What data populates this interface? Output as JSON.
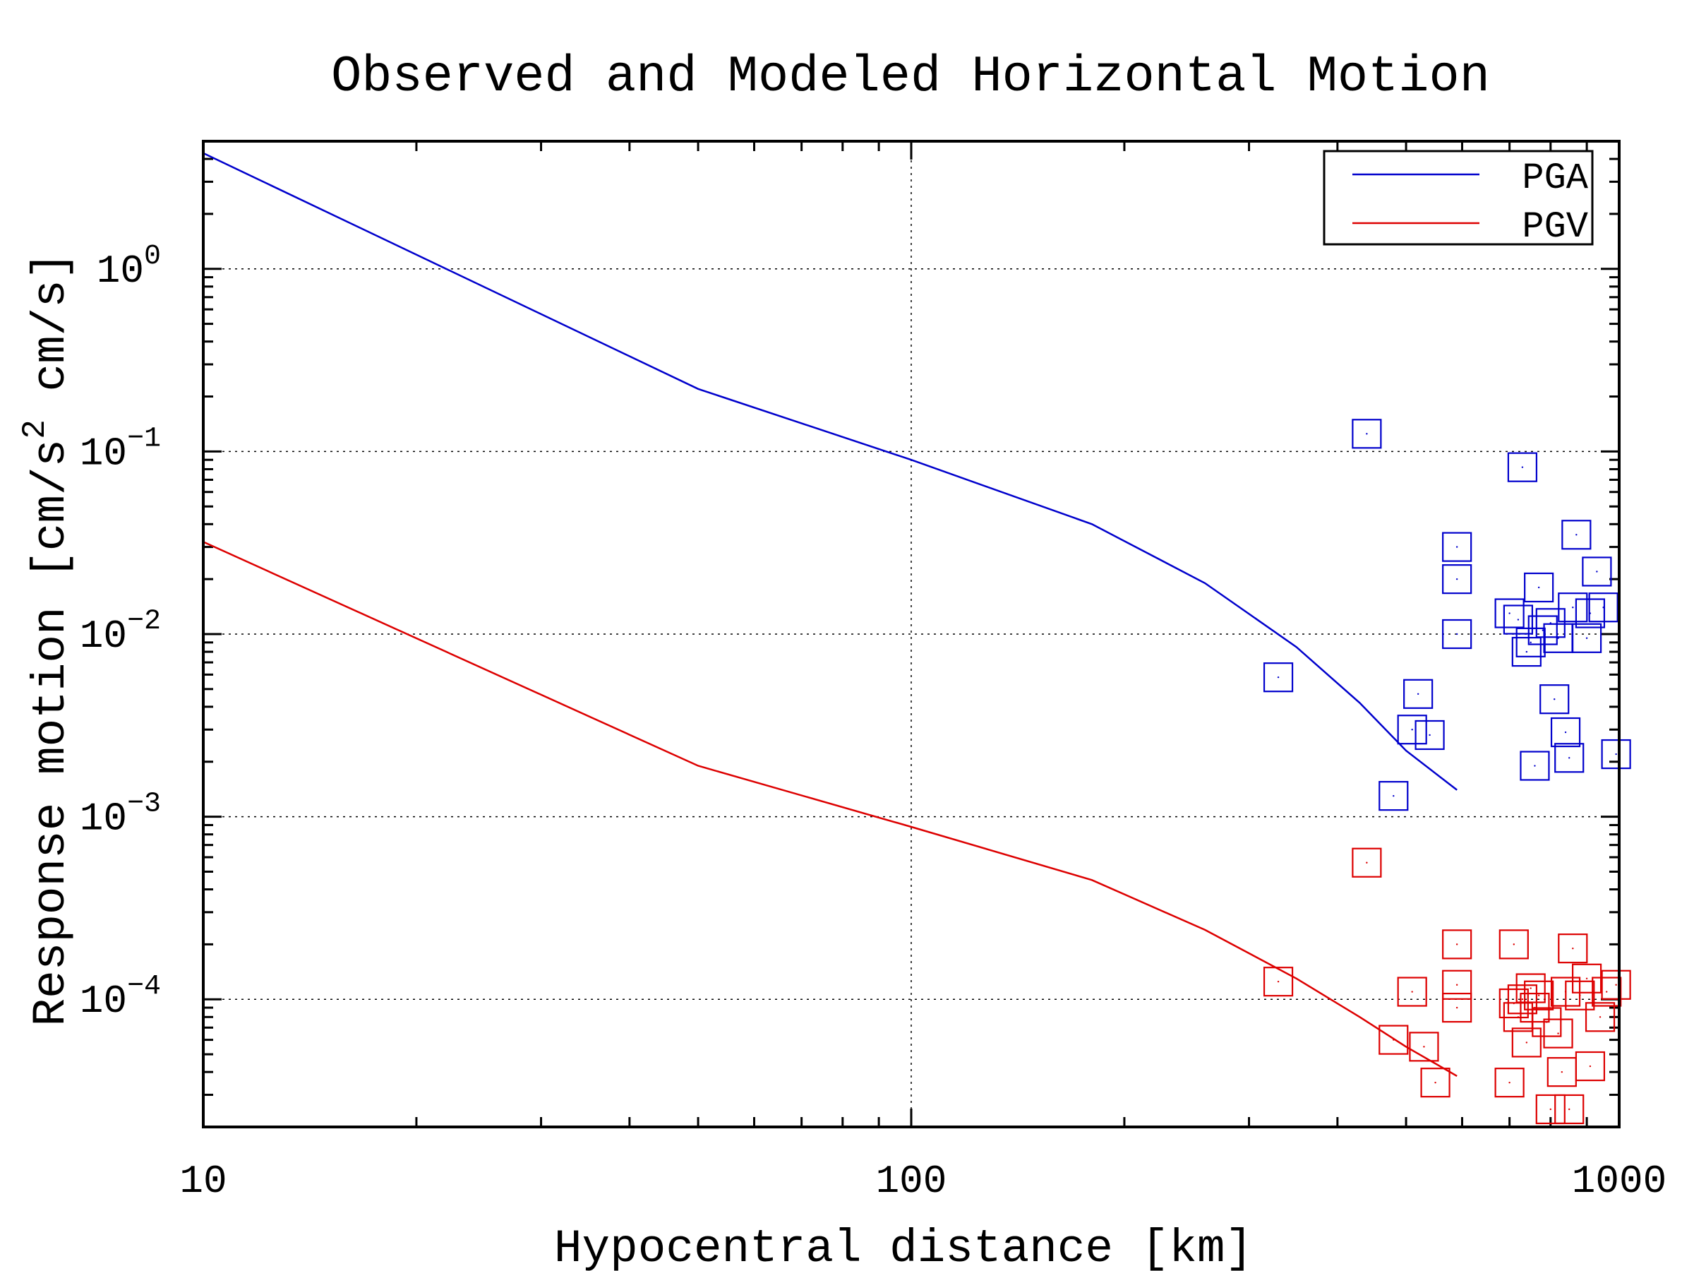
{
  "chart_data": {
    "type": "line",
    "title": "Observed and Modeled Horizontal Motion",
    "xlabel": "Hypocentral distance [km]",
    "ylabel": "Response motion [cm/s² cm/s]",
    "xscale": "log",
    "yscale": "log",
    "xlim": [
      10,
      1000
    ],
    "ylim": [
      2e-05,
      5
    ],
    "xticks": [
      "10",
      "100",
      "1000"
    ],
    "yticks": [
      {
        "base": "10",
        "exp": "0",
        "value": 1
      },
      {
        "base": "10",
        "exp": "−1",
        "value": 0.1
      },
      {
        "base": "10",
        "exp": "−2",
        "value": 0.01
      },
      {
        "base": "10",
        "exp": "−3",
        "value": 0.001
      },
      {
        "base": "10",
        "exp": "−4",
        "value": 0.0001
      }
    ],
    "grid": true,
    "legend_position": "top-right",
    "series": [
      {
        "name": "PGA",
        "color": "#0000cc",
        "x": [
          10,
          50,
          100,
          180,
          260,
          350,
          430,
          500,
          590
        ],
        "y": [
          4.3,
          0.22,
          0.09,
          0.04,
          0.019,
          0.0085,
          0.0042,
          0.0023,
          0.0014
        ]
      },
      {
        "name": "PGV",
        "color": "#dd0000",
        "x": [
          10,
          50,
          100,
          180,
          260,
          350,
          430,
          500,
          590
        ],
        "y": [
          0.032,
          0.0019,
          0.00088,
          0.00045,
          0.00024,
          0.00013,
          8e-05,
          5.5e-05,
          3.8e-05
        ]
      }
    ],
    "observed": [
      {
        "series": "PGA",
        "color": "#0000cc",
        "marker": "square",
        "points": [
          [
            330,
            0.0058
          ],
          [
            440,
            0.125
          ],
          [
            480,
            0.0013
          ],
          [
            510,
            0.003
          ],
          [
            520,
            0.0047
          ],
          [
            540,
            0.0028
          ],
          [
            590,
            0.03
          ],
          [
            590,
            0.02
          ],
          [
            590,
            0.01
          ],
          [
            700,
            0.013
          ],
          [
            720,
            0.012
          ],
          [
            730,
            0.082
          ],
          [
            740,
            0.008
          ],
          [
            750,
            0.009
          ],
          [
            760,
            0.0019
          ],
          [
            770,
            0.018
          ],
          [
            780,
            0.0105
          ],
          [
            800,
            0.0115
          ],
          [
            810,
            0.0044
          ],
          [
            820,
            0.0095
          ],
          [
            840,
            0.0029
          ],
          [
            850,
            0.0021
          ],
          [
            860,
            0.014
          ],
          [
            870,
            0.035
          ],
          [
            900,
            0.0095
          ],
          [
            910,
            0.013
          ],
          [
            930,
            0.022
          ],
          [
            950,
            0.014
          ],
          [
            990,
            0.0022
          ]
        ]
      },
      {
        "series": "PGV",
        "color": "#dd0000",
        "marker": "square",
        "points": [
          [
            330,
            0.000125
          ],
          [
            440,
            0.00056
          ],
          [
            480,
            6e-05
          ],
          [
            510,
            0.00011
          ],
          [
            530,
            5.5e-05
          ],
          [
            550,
            3.5e-05
          ],
          [
            590,
            0.0002
          ],
          [
            590,
            0.00012
          ],
          [
            590,
            9e-05
          ],
          [
            700,
            3.5e-05
          ],
          [
            710,
            0.0002
          ],
          [
            710,
            9.5e-05
          ],
          [
            720,
            8e-05
          ],
          [
            730,
            0.0001
          ],
          [
            740,
            5.8e-05
          ],
          [
            750,
            0.000115
          ],
          [
            760,
            9e-05
          ],
          [
            770,
            0.000105
          ],
          [
            790,
            7.5e-05
          ],
          [
            800,
            2.5e-05
          ],
          [
            820,
            6.5e-05
          ],
          [
            830,
            4e-05
          ],
          [
            840,
            0.00011
          ],
          [
            850,
            2.5e-05
          ],
          [
            860,
            0.00019
          ],
          [
            880,
            0.000105
          ],
          [
            900,
            0.00013
          ],
          [
            910,
            4.3e-05
          ],
          [
            940,
            8e-05
          ],
          [
            960,
            0.00011
          ],
          [
            990,
            0.00012
          ]
        ]
      }
    ]
  }
}
